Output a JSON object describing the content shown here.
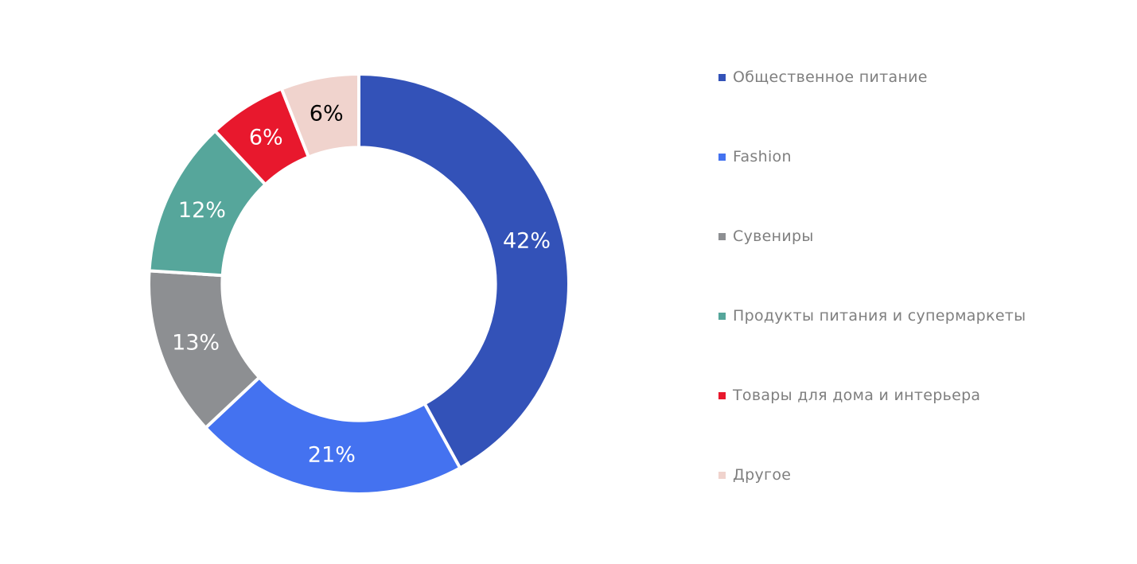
{
  "chart_data": {
    "type": "pie",
    "subtype": "donut",
    "title": "",
    "categories": [
      "Общественное питание",
      "Fashion",
      "Сувениры",
      "Продукты питания и супермаркеты",
      "Товары для дома и интерьера",
      "Другое"
    ],
    "values": [
      42,
      21,
      13,
      12,
      6,
      6
    ],
    "data_labels": [
      "42%",
      "21%",
      "13%",
      "12%",
      "6%",
      "6%"
    ],
    "colors": [
      "#3352B8",
      "#4472F0",
      "#8D8F92",
      "#56A69B",
      "#E8182D",
      "#F0D3CD"
    ],
    "label_text_colors": [
      "#FFFFFF",
      "#FFFFFF",
      "#FFFFFF",
      "#FFFFFF",
      "#FFFFFF",
      "#000000"
    ],
    "start_angle_deg": 0,
    "direction": "clockwise",
    "inner_radius_ratio": 0.65,
    "slice_gap_color": "#FFFFFF",
    "legend_position": "right",
    "legend_text_color": "#7F7F7F"
  }
}
